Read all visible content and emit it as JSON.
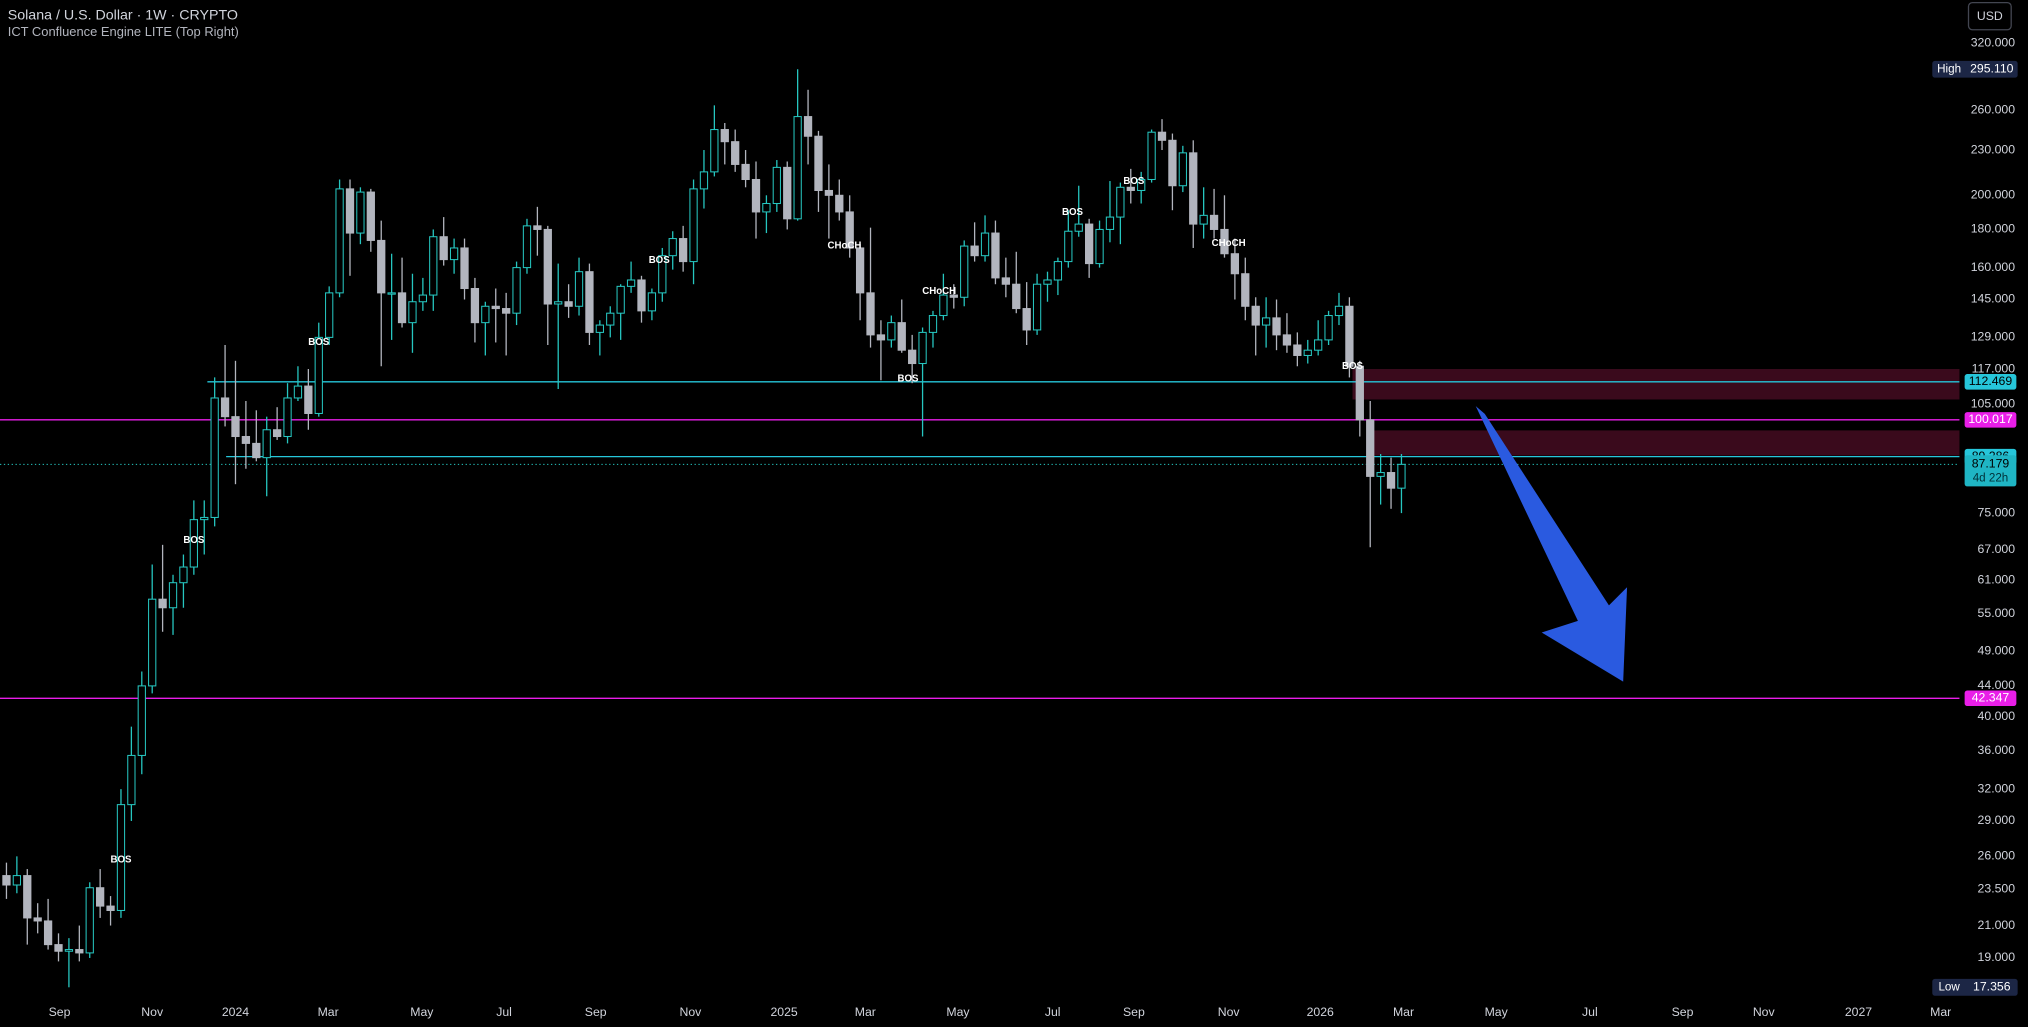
{
  "chart_data": {
    "type": "candlestick",
    "title": "Solana / U.S. Dollar · 1W · CRYPTO",
    "subtitle": "ICT Confluence Engine LITE (Top Right)",
    "currency": "USD",
    "up_color": "#26c6c0",
    "down_color": "#b2b5be",
    "log_scale": true,
    "xlim": [
      -0.62,
      187.6
    ],
    "ylim": [
      16.9,
      365.4
    ],
    "xticks": [
      {
        "value": 5.1,
        "label": "Sep"
      },
      {
        "value": 14.0,
        "label": "Nov"
      },
      {
        "value": 22.0,
        "label": "2024"
      },
      {
        "value": 30.9,
        "label": "Mar"
      },
      {
        "value": 39.9,
        "label": "May"
      },
      {
        "value": 47.8,
        "label": "Jul"
      },
      {
        "value": 56.6,
        "label": "Sep"
      },
      {
        "value": 65.7,
        "label": "Nov"
      },
      {
        "value": 74.7,
        "label": "2025"
      },
      {
        "value": 82.5,
        "label": "Mar"
      },
      {
        "value": 91.4,
        "label": "May"
      },
      {
        "value": 100.5,
        "label": "Jul"
      },
      {
        "value": 108.3,
        "label": "Sep"
      },
      {
        "value": 117.4,
        "label": "Nov"
      },
      {
        "value": 126.2,
        "label": "2026"
      },
      {
        "value": 134.2,
        "label": "Mar"
      },
      {
        "value": 143.1,
        "label": "May"
      },
      {
        "value": 152.1,
        "label": "Jul"
      },
      {
        "value": 161.0,
        "label": "Sep"
      },
      {
        "value": 168.8,
        "label": "Nov"
      },
      {
        "value": 177.9,
        "label": "2027"
      },
      {
        "value": 185.8,
        "label": "Mar"
      }
    ],
    "yticks": [
      {
        "value": 320,
        "label": "320.000"
      },
      {
        "value": 260,
        "label": "260.000"
      },
      {
        "value": 230,
        "label": "230.000"
      },
      {
        "value": 200,
        "label": "200.000"
      },
      {
        "value": 180,
        "label": "180.000"
      },
      {
        "value": 160,
        "label": "160.000"
      },
      {
        "value": 145,
        "label": "145.000"
      },
      {
        "value": 129,
        "label": "129.000"
      },
      {
        "value": 117,
        "label": "117.000"
      },
      {
        "value": 105,
        "label": "105.000"
      },
      {
        "value": 75,
        "label": "75.000"
      },
      {
        "value": 67,
        "label": "67.000"
      },
      {
        "value": 61,
        "label": "61.000"
      },
      {
        "value": 55,
        "label": "55.000"
      },
      {
        "value": 49,
        "label": "49.000"
      },
      {
        "value": 44,
        "label": "44.000"
      },
      {
        "value": 40,
        "label": "40.000"
      },
      {
        "value": 36,
        "label": "36.000"
      },
      {
        "value": 32,
        "label": "32.000"
      },
      {
        "value": 29,
        "label": "29.000"
      },
      {
        "value": 26,
        "label": "26.000"
      },
      {
        "value": 23.5,
        "label": "23.500"
      },
      {
        "value": 21,
        "label": "21.000"
      },
      {
        "value": 19,
        "label": "19.000"
      }
    ],
    "open": [
      24.5,
      23.8,
      24.5,
      21.5,
      21.3,
      19.8,
      19.4,
      19.5,
      19.3,
      23.6,
      22.3,
      22,
      30.5,
      35.5,
      44,
      57.5,
      56,
      60.5,
      63.5,
      73.5,
      74,
      107,
      101,
      95,
      93,
      89,
      97,
      95,
      107,
      111,
      102,
      129,
      148,
      204,
      178,
      202,
      174,
      148,
      148,
      135,
      144,
      147,
      176,
      164,
      170,
      150,
      135,
      142,
      141,
      139,
      160,
      182,
      180,
      143,
      144,
      142,
      158,
      131,
      134,
      139,
      151,
      154,
      140,
      148,
      166,
      175,
      163,
      204,
      215,
      245,
      236,
      220,
      210,
      190,
      195,
      218,
      186,
      255,
      240,
      203,
      200,
      190,
      170,
      148,
      130,
      128,
      135,
      124,
      119,
      131,
      138,
      147,
      146,
      171,
      166,
      178,
      155,
      152,
      141,
      132,
      152,
      154,
      163,
      179,
      183,
      162,
      180,
      187,
      205,
      203,
      210,
      243,
      237,
      206,
      228,
      183,
      188,
      180,
      167,
      157,
      142,
      134,
      137,
      130,
      126,
      122,
      124,
      128,
      138,
      142,
      118,
      100,
      84,
      85,
      81
    ],
    "high": [
      25.5,
      26,
      25,
      22.5,
      22.8,
      20.5,
      20.2,
      21,
      24,
      25,
      23,
      32,
      38.8,
      46,
      64,
      68,
      62,
      66,
      78,
      78,
      114,
      126,
      120,
      106,
      103,
      101,
      104,
      112,
      118,
      117,
      135,
      151,
      210,
      210,
      205,
      204,
      185,
      167,
      165,
      157,
      155,
      180,
      187,
      175,
      175,
      155,
      144,
      150,
      148,
      163,
      186,
      193,
      182,
      162,
      152,
      165,
      162,
      136,
      142,
      152,
      163,
      156,
      150,
      170,
      179,
      182,
      210,
      230,
      264,
      250,
      245,
      230,
      222,
      200,
      223,
      222,
      295.11,
      277,
      244,
      220,
      210,
      200,
      172,
      181,
      136,
      138,
      145,
      130,
      133,
      140,
      157,
      152,
      174,
      184,
      188,
      185,
      165,
      168,
      153,
      157,
      158,
      165,
      191,
      206,
      186,
      185,
      209,
      208,
      217,
      215,
      245,
      253,
      242,
      233,
      237,
      205,
      204,
      200,
      175,
      165,
      146,
      146,
      145,
      139,
      131,
      128,
      136,
      140,
      148,
      146,
      120,
      106,
      90,
      89,
      90
    ],
    "low": [
      22.8,
      23.2,
      19.8,
      20.5,
      19.5,
      18.8,
      17.356,
      18.8,
      19,
      21.5,
      21,
      21.5,
      29,
      33.5,
      43,
      52,
      51.5,
      56,
      62,
      66,
      72,
      98,
      82,
      86,
      88,
      79,
      94,
      93,
      106,
      97,
      101,
      126,
      146,
      156,
      172,
      168,
      118,
      128,
      133,
      123,
      140,
      140,
      161,
      157,
      145,
      127,
      122,
      127,
      122,
      134,
      157,
      166,
      126,
      110,
      137,
      138,
      126,
      122,
      129,
      128,
      148,
      135,
      136,
      144,
      159,
      158,
      152,
      192,
      212,
      220,
      215,
      205,
      175,
      178,
      190,
      180,
      185,
      220,
      190,
      175,
      185,
      165,
      136,
      125,
      113,
      125,
      123,
      112,
      95,
      125,
      136,
      141,
      142,
      163,
      163,
      152,
      146,
      139,
      126,
      130,
      144,
      147,
      160,
      176,
      155,
      160,
      173,
      172,
      195,
      195,
      208,
      230,
      191,
      202,
      170,
      175,
      175,
      165,
      145,
      136,
      122,
      125,
      124,
      123,
      118,
      119,
      122,
      126,
      134,
      114,
      95,
      67.5,
      77,
      76,
      75
    ],
    "close": [
      23.8,
      24.5,
      21.5,
      21.3,
      19.8,
      19.4,
      19.5,
      19.3,
      23.6,
      22.3,
      22,
      30.5,
      35.5,
      44,
      57.5,
      56,
      60.5,
      63.5,
      73.5,
      74,
      107,
      101,
      95,
      93,
      89,
      97,
      95,
      107,
      111,
      102,
      129,
      148,
      204,
      178,
      202,
      174,
      148,
      148,
      135,
      144,
      147,
      176,
      164,
      170,
      150,
      135,
      142,
      141,
      139,
      160,
      182,
      180,
      143,
      144,
      142,
      158,
      131,
      134,
      139,
      151,
      154,
      140,
      148,
      166,
      175,
      163,
      204,
      215,
      245,
      236,
      220,
      210,
      190,
      195,
      218,
      186,
      255,
      240,
      203,
      200,
      190,
      170,
      148,
      130,
      128,
      135,
      124,
      119,
      131,
      138,
      147,
      146,
      171,
      166,
      178,
      155,
      152,
      141,
      132,
      152,
      154,
      163,
      179,
      183,
      162,
      180,
      187,
      205,
      203,
      210,
      243,
      237,
      206,
      228,
      183,
      188,
      180,
      167,
      157,
      142,
      134,
      137,
      130,
      126,
      122,
      124,
      128,
      138,
      142,
      118,
      100,
      84,
      85,
      81,
      87.179
    ],
    "countdown": "4d 22h",
    "high_marker": {
      "text": "High",
      "value": 295.11,
      "label": "295.110"
    },
    "low_marker": {
      "text": "Low",
      "value": 17.356
    },
    "levels": [
      {
        "value": 112.469,
        "color": "#26c6da",
        "start": 19.3
      },
      {
        "value": 100.017,
        "color": "#e91ee8",
        "start": -0.62
      },
      {
        "value": 89.286,
        "color": "#26c6da",
        "start": 21.1
      },
      {
        "value": 42.347,
        "color": "#e91ee8",
        "start": -0.62
      }
    ],
    "zones": [
      {
        "from": 106.5,
        "to": 117,
        "start": 129.3,
        "color": "#3a0a1c"
      },
      {
        "from": 89.6,
        "to": 96.8,
        "start": 130.8,
        "color": "#3a0a1c"
      }
    ],
    "annotations": [
      {
        "text": "BOS",
        "x": 11,
        "y": 25.7
      },
      {
        "text": "BOS",
        "x": 18,
        "y": 68.9
      },
      {
        "text": "BOS",
        "x": 30,
        "y": 127
      },
      {
        "text": "BOS",
        "x": 62.7,
        "y": 163.7
      },
      {
        "text": "CHoCH",
        "x": 80.5,
        "y": 171
      },
      {
        "text": "BOS",
        "x": 86.6,
        "y": 113.4
      },
      {
        "text": "CHoCH",
        "x": 89.6,
        "y": 148.7
      },
      {
        "text": "BOS",
        "x": 102.4,
        "y": 189.7
      },
      {
        "text": "BOS",
        "x": 108.3,
        "y": 208.7
      },
      {
        "text": "CHoCH",
        "x": 117.4,
        "y": 172.5
      },
      {
        "text": "BOS",
        "x": 129.3,
        "y": 118
      }
    ]
  }
}
